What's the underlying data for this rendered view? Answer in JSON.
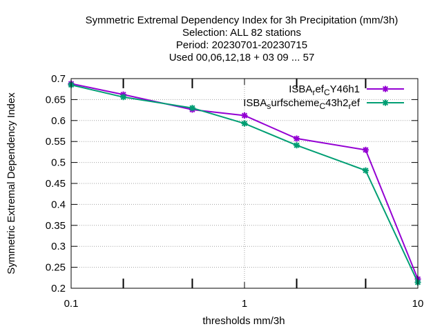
{
  "chart_data": {
    "type": "line",
    "title_lines": [
      "Symmetric Extremal Dependency Index  for 3h Precipitation (mm/3h)",
      "Selection: ALL     82 stations",
      "Period: 20230701-20230715",
      "Used  00,06,12,18 + 03 09 ... 57"
    ],
    "xlabel": "thresholds mm/3h",
    "ylabel": "Symmetric Extremal Dependency Index",
    "xscale": "log",
    "xlim": [
      0.1,
      10
    ],
    "ylim": [
      0.2,
      0.7
    ],
    "x_tick_labels": [
      "0.1",
      "1",
      "10"
    ],
    "y_tick_labels": [
      "0.2",
      "0.25",
      "0.3",
      "0.35",
      "0.4",
      "0.45",
      "0.5",
      "0.55",
      "0.6",
      "0.65",
      "0.7"
    ],
    "grid": true,
    "legend_position": "top-right",
    "x": [
      0.1,
      0.2,
      0.5,
      1,
      2,
      5,
      10
    ],
    "series": [
      {
        "legend": {
          "base": "ISBA",
          "s1": "r",
          "m1": "ef",
          "s2": "C",
          "m2": "Y46h1"
        },
        "color": "#9400d3",
        "values": [
          0.688,
          0.662,
          0.626,
          0.612,
          0.557,
          0.53,
          0.222
        ]
      },
      {
        "legend": {
          "base": "ISBA",
          "s1": "s",
          "m1": "urfscheme",
          "s2": "C",
          "m2": "43h2",
          "s3": "r",
          "m3": "ef"
        },
        "color": "#009e73",
        "values": [
          0.685,
          0.656,
          0.63,
          0.593,
          0.541,
          0.481,
          0.214
        ]
      }
    ]
  }
}
